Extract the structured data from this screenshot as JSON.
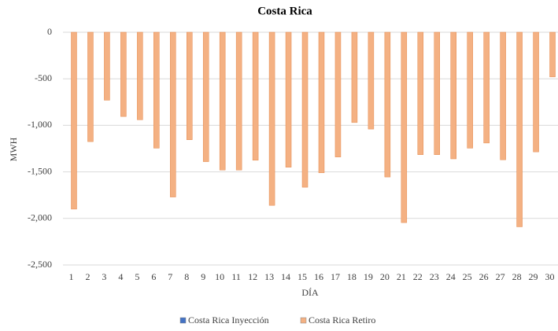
{
  "chart_data": {
    "type": "bar",
    "title": "Costa Rica",
    "x_label": "DÍA",
    "y_label": "MWH",
    "categories": [
      "1",
      "2",
      "3",
      "4",
      "5",
      "6",
      "7",
      "8",
      "9",
      "10",
      "11",
      "12",
      "13",
      "14",
      "15",
      "16",
      "17",
      "18",
      "19",
      "20",
      "21",
      "22",
      "23",
      "24",
      "25",
      "26",
      "27",
      "28",
      "29",
      "30"
    ],
    "series": [
      {
        "name": "Costa Rica Inyección",
        "color": "#4472c4",
        "values": [
          0,
          0,
          0,
          0,
          0,
          0,
          0,
          0,
          0,
          0,
          0,
          0,
          0,
          0,
          0,
          0,
          0,
          0,
          0,
          0,
          0,
          0,
          0,
          0,
          0,
          0,
          0,
          0,
          0,
          0
        ]
      },
      {
        "name": "Costa Rica Retiro",
        "color": "#f4b183",
        "values": [
          -1900,
          -1175,
          -730,
          -905,
          -940,
          -1245,
          -1770,
          -1155,
          -1390,
          -1480,
          -1480,
          -1375,
          -1860,
          -1450,
          -1665,
          -1510,
          -1340,
          -970,
          -1040,
          -1555,
          -2045,
          -1315,
          -1315,
          -1360,
          -1245,
          -1190,
          -1370,
          -2090,
          -1285,
          -480
        ]
      }
    ],
    "ylim": [
      -2500,
      0
    ],
    "yticks": [
      0,
      -500,
      {
        "value": -1000,
        "label": "-1,000"
      },
      {
        "value": -1500,
        "label": "-1,500"
      },
      {
        "value": -2000,
        "label": "-2,000"
      },
      {
        "value": -2500,
        "label": "-2,500"
      }
    ],
    "grid": true,
    "legend": "bottom"
  }
}
